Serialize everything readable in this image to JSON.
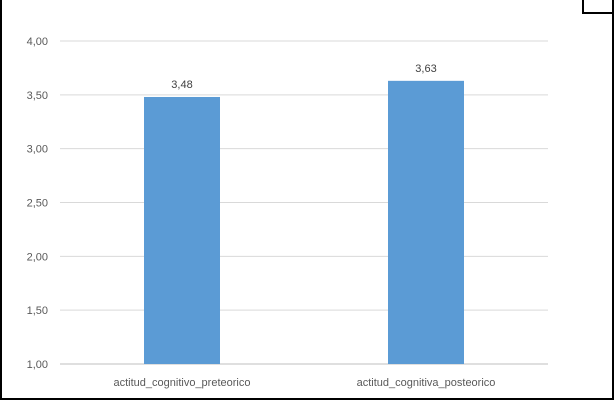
{
  "chart_data": {
    "type": "bar",
    "categories": [
      "actitud_cognitivo_preteorico",
      "actitud_cognitiva_posteorico"
    ],
    "values": [
      3.48,
      3.63
    ],
    "value_labels": [
      "3,48",
      "3,63"
    ],
    "ylim": [
      1.0,
      4.0
    ],
    "yticks": [
      1.0,
      1.5,
      2.0,
      2.5,
      3.0,
      3.5,
      4.0
    ],
    "ytick_labels": [
      "1,00",
      "1,50",
      "2,00",
      "2,50",
      "3,00",
      "3,50",
      "4,00"
    ],
    "grid": true,
    "bar_color": "#5B9BD5",
    "grid_color": "#D9D9D9"
  }
}
